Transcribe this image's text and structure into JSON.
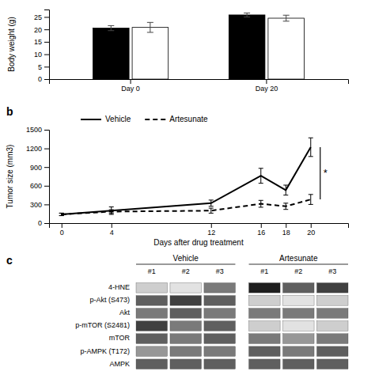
{
  "chart_data": [
    {
      "type": "bar",
      "categories": [
        "Day 0",
        "Day 20"
      ],
      "series": [
        {
          "color": "#000000",
          "values": [
            20.5,
            25.8
          ],
          "errors": [
            1.0,
            0.8
          ]
        },
        {
          "color": "#ffffff",
          "values": [
            20.8,
            24.5
          ],
          "errors": [
            2.0,
            1.2
          ]
        }
      ],
      "y_label": "Body weight (g)",
      "ylim": [
        0,
        28
      ],
      "yticks": [
        0,
        5,
        10,
        15,
        20,
        25
      ]
    },
    {
      "type": "line",
      "title": "b",
      "x": [
        0,
        4,
        12,
        16,
        18,
        20
      ],
      "series": [
        {
          "name": "Vehicle",
          "color": "#000000",
          "line_style": "solid",
          "values": [
            140,
            200,
            320,
            760,
            530,
            1220
          ],
          "errors": [
            20,
            60,
            50,
            120,
            80,
            150
          ]
        },
        {
          "name": "Artesunate",
          "color": "#000000",
          "line_style": "dashed",
          "values": [
            140,
            185,
            200,
            310,
            270,
            380
          ],
          "errors": [
            20,
            30,
            40,
            55,
            50,
            80
          ]
        }
      ],
      "x_label": "Days after drug treatment",
      "y_label": "Tumor size (mm3)",
      "xlim": [
        -1,
        23
      ],
      "xticks": [
        0,
        4,
        12,
        16,
        18,
        20
      ],
      "ylim": [
        0,
        1500
      ],
      "yticks": [
        0,
        300,
        600,
        900,
        1200,
        1500
      ],
      "legend": "upper left",
      "annotations": [
        {
          "text": "*"
        }
      ]
    },
    {
      "type": "heatmap",
      "title": "c",
      "categories": [
        "4-HNE",
        "p-Akt (S473)",
        "Akt",
        "p-mTOR (S2481)",
        "mTOR",
        "p-AMPK (T172)",
        "AMPK"
      ],
      "series": [
        {
          "name": "Vehicle",
          "columns": [
            "#1",
            "#2",
            "#3"
          ],
          "values": [
            [
              0.3,
              0.2,
              0.6
            ],
            [
              0.7,
              0.8,
              0.7
            ],
            [
              0.6,
              0.7,
              0.6
            ],
            [
              0.8,
              0.6,
              0.7
            ],
            [
              0.7,
              0.6,
              0.7
            ],
            [
              0.5,
              0.6,
              0.6
            ],
            [
              0.7,
              0.7,
              0.7
            ]
          ]
        },
        {
          "name": "Artesunate",
          "columns": [
            "#1",
            "#2",
            "#3"
          ],
          "values": [
            [
              0.9,
              0.7,
              0.8
            ],
            [
              0.3,
              0.2,
              0.3
            ],
            [
              0.6,
              0.6,
              0.6
            ],
            [
              0.3,
              0.2,
              0.3
            ],
            [
              0.6,
              0.5,
              0.6
            ],
            [
              0.7,
              0.6,
              0.7
            ],
            [
              0.7,
              0.7,
              0.7
            ]
          ]
        }
      ]
    }
  ]
}
